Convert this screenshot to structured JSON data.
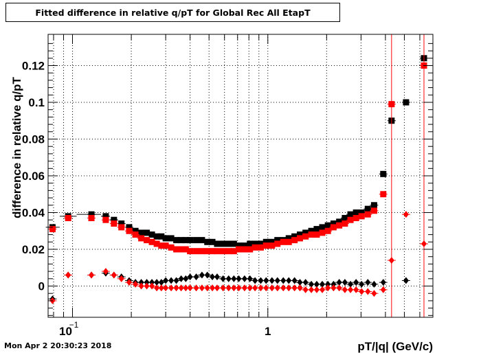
{
  "title": "Fitted difference in relative q/pT  for Global Rec All EtapT",
  "footer": "Mon Apr  2 20:30:23 2018",
  "chart_data": {
    "type": "scatter",
    "title": "Fitted difference in relative q/pT  for Global Rec All EtapT",
    "xlabel": "pT/|q| (GeV/c)",
    "ylabel": "difference in relative q/pT",
    "xscale": "log",
    "xlim": [
      0.075,
      7.0
    ],
    "ylim": [
      -0.017,
      0.137
    ],
    "x_tick_labels": [
      {
        "x": 0.1,
        "text": "10",
        "exp": "−1"
      },
      {
        "x": 1,
        "text": "1",
        "exp": ""
      }
    ],
    "y_ticks": [
      0,
      0.02,
      0.04,
      0.06,
      0.08,
      0.1,
      0.12
    ],
    "y_tick_labels": [
      "0",
      "0.02",
      "0.04",
      "0.06",
      "0.08",
      "0.1",
      "0.12"
    ],
    "grid": true,
    "series": [
      {
        "color": "#000000",
        "marker": "square",
        "points": [
          [
            0.079,
            0.032
          ],
          [
            0.095,
            0.038
          ],
          [
            0.125,
            0.039
          ],
          [
            0.148,
            0.038
          ],
          [
            0.163,
            0.036
          ],
          [
            0.178,
            0.034
          ],
          [
            0.195,
            0.032
          ],
          [
            0.21,
            0.03
          ],
          [
            0.225,
            0.029
          ],
          [
            0.24,
            0.029
          ],
          [
            0.255,
            0.028
          ],
          [
            0.27,
            0.027
          ],
          [
            0.285,
            0.027
          ],
          [
            0.3,
            0.026
          ],
          [
            0.32,
            0.026
          ],
          [
            0.34,
            0.025
          ],
          [
            0.36,
            0.025
          ],
          [
            0.38,
            0.025
          ],
          [
            0.4,
            0.025
          ],
          [
            0.43,
            0.025
          ],
          [
            0.46,
            0.025
          ],
          [
            0.49,
            0.024
          ],
          [
            0.52,
            0.024
          ],
          [
            0.55,
            0.023
          ],
          [
            0.59,
            0.023
          ],
          [
            0.63,
            0.023
          ],
          [
            0.67,
            0.023
          ],
          [
            0.71,
            0.022
          ],
          [
            0.76,
            0.022
          ],
          [
            0.81,
            0.023
          ],
          [
            0.86,
            0.023
          ],
          [
            0.92,
            0.023
          ],
          [
            0.98,
            0.024
          ],
          [
            1.05,
            0.024
          ],
          [
            1.12,
            0.025
          ],
          [
            1.2,
            0.025
          ],
          [
            1.28,
            0.026
          ],
          [
            1.37,
            0.027
          ],
          [
            1.46,
            0.028
          ],
          [
            1.56,
            0.029
          ],
          [
            1.67,
            0.03
          ],
          [
            1.78,
            0.031
          ],
          [
            1.9,
            0.032
          ],
          [
            2.03,
            0.033
          ],
          [
            2.17,
            0.034
          ],
          [
            2.32,
            0.035
          ],
          [
            2.48,
            0.037
          ],
          [
            2.65,
            0.039
          ],
          [
            2.83,
            0.04
          ],
          [
            3.02,
            0.04
          ],
          [
            3.25,
            0.042
          ],
          [
            3.5,
            0.044
          ],
          [
            3.9,
            0.061
          ],
          [
            4.3,
            0.09
          ],
          [
            5.1,
            0.1
          ],
          [
            6.3,
            0.124
          ]
        ],
        "xerr": [
          [
            0.073,
            0.086
          ],
          [
            0.086,
            0.105
          ],
          [
            0.105,
            0.14
          ],
          [
            0.14,
            0.155
          ],
          [
            0.155,
            0.17
          ]
        ]
      },
      {
        "color": "#ff0000",
        "marker": "square",
        "points": [
          [
            0.079,
            0.031
          ],
          [
            0.095,
            0.037
          ],
          [
            0.125,
            0.037
          ],
          [
            0.148,
            0.036
          ],
          [
            0.163,
            0.034
          ],
          [
            0.178,
            0.032
          ],
          [
            0.195,
            0.03
          ],
          [
            0.21,
            0.028
          ],
          [
            0.225,
            0.026
          ],
          [
            0.24,
            0.025
          ],
          [
            0.255,
            0.024
          ],
          [
            0.27,
            0.023
          ],
          [
            0.285,
            0.022
          ],
          [
            0.3,
            0.022
          ],
          [
            0.32,
            0.021
          ],
          [
            0.34,
            0.02
          ],
          [
            0.36,
            0.02
          ],
          [
            0.38,
            0.02
          ],
          [
            0.4,
            0.019
          ],
          [
            0.43,
            0.019
          ],
          [
            0.46,
            0.019
          ],
          [
            0.49,
            0.019
          ],
          [
            0.52,
            0.019
          ],
          [
            0.55,
            0.019
          ],
          [
            0.59,
            0.019
          ],
          [
            0.63,
            0.019
          ],
          [
            0.67,
            0.019
          ],
          [
            0.71,
            0.02
          ],
          [
            0.76,
            0.02
          ],
          [
            0.81,
            0.02
          ],
          [
            0.86,
            0.021
          ],
          [
            0.92,
            0.021
          ],
          [
            0.98,
            0.022
          ],
          [
            1.05,
            0.022
          ],
          [
            1.12,
            0.023
          ],
          [
            1.2,
            0.024
          ],
          [
            1.28,
            0.024
          ],
          [
            1.37,
            0.025
          ],
          [
            1.46,
            0.026
          ],
          [
            1.56,
            0.027
          ],
          [
            1.67,
            0.028
          ],
          [
            1.78,
            0.028
          ],
          [
            1.9,
            0.029
          ],
          [
            2.03,
            0.03
          ],
          [
            2.17,
            0.032
          ],
          [
            2.32,
            0.033
          ],
          [
            2.48,
            0.034
          ],
          [
            2.65,
            0.036
          ],
          [
            2.83,
            0.037
          ],
          [
            3.02,
            0.038
          ],
          [
            3.25,
            0.039
          ],
          [
            3.5,
            0.041
          ],
          [
            3.9,
            0.05
          ],
          [
            4.3,
            0.099
          ],
          [
            6.3,
            0.12
          ]
        ],
        "yerr_full": [
          4.3,
          6.3
        ]
      },
      {
        "color": "#000000",
        "marker": "diamond",
        "points": [
          [
            0.079,
            -0.007
          ],
          [
            0.095,
            0.006
          ],
          [
            0.125,
            0.006
          ],
          [
            0.148,
            0.007
          ],
          [
            0.163,
            0.006
          ],
          [
            0.178,
            0.005
          ],
          [
            0.195,
            0.003
          ],
          [
            0.21,
            0.002
          ],
          [
            0.225,
            0.002
          ],
          [
            0.24,
            0.002
          ],
          [
            0.255,
            0.002
          ],
          [
            0.27,
            0.002
          ],
          [
            0.285,
            0.002
          ],
          [
            0.3,
            0.003
          ],
          [
            0.32,
            0.003
          ],
          [
            0.34,
            0.003
          ],
          [
            0.36,
            0.004
          ],
          [
            0.38,
            0.004
          ],
          [
            0.4,
            0.005
          ],
          [
            0.43,
            0.005
          ],
          [
            0.46,
            0.006
          ],
          [
            0.49,
            0.006
          ],
          [
            0.52,
            0.005
          ],
          [
            0.55,
            0.005
          ],
          [
            0.59,
            0.004
          ],
          [
            0.63,
            0.004
          ],
          [
            0.67,
            0.004
          ],
          [
            0.71,
            0.004
          ],
          [
            0.76,
            0.004
          ],
          [
            0.81,
            0.004
          ],
          [
            0.86,
            0.003
          ],
          [
            0.92,
            0.003
          ],
          [
            0.98,
            0.003
          ],
          [
            1.05,
            0.003
          ],
          [
            1.12,
            0.003
          ],
          [
            1.2,
            0.003
          ],
          [
            1.28,
            0.003
          ],
          [
            1.37,
            0.003
          ],
          [
            1.46,
            0.002
          ],
          [
            1.56,
            0.002
          ],
          [
            1.67,
            0.001
          ],
          [
            1.78,
            0.001
          ],
          [
            1.9,
            0.001
          ],
          [
            2.03,
            0.001
          ],
          [
            2.17,
            0.001
          ],
          [
            2.32,
            0.002
          ],
          [
            2.48,
            0.002
          ],
          [
            2.65,
            0.001
          ],
          [
            2.83,
            0.002
          ],
          [
            3.02,
            0.001
          ],
          [
            3.25,
            0.002
          ],
          [
            3.5,
            0.001
          ],
          [
            3.9,
            0.002
          ],
          [
            5.1,
            0.003
          ]
        ]
      },
      {
        "color": "#ff0000",
        "marker": "diamond",
        "points": [
          [
            0.079,
            -0.008
          ],
          [
            0.095,
            0.006
          ],
          [
            0.125,
            0.006
          ],
          [
            0.148,
            0.008
          ],
          [
            0.163,
            0.006
          ],
          [
            0.178,
            0.004
          ],
          [
            0.195,
            0.002
          ],
          [
            0.21,
            0.001
          ],
          [
            0.225,
            0.0
          ],
          [
            0.24,
            0.0
          ],
          [
            0.255,
            0.0
          ],
          [
            0.27,
            -0.001
          ],
          [
            0.285,
            -0.001
          ],
          [
            0.3,
            -0.001
          ],
          [
            0.32,
            -0.001
          ],
          [
            0.34,
            -0.001
          ],
          [
            0.36,
            -0.001
          ],
          [
            0.38,
            -0.001
          ],
          [
            0.4,
            -0.001
          ],
          [
            0.43,
            -0.001
          ],
          [
            0.46,
            -0.001
          ],
          [
            0.49,
            -0.001
          ],
          [
            0.52,
            -0.001
          ],
          [
            0.55,
            -0.001
          ],
          [
            0.59,
            -0.001
          ],
          [
            0.63,
            -0.001
          ],
          [
            0.67,
            -0.001
          ],
          [
            0.71,
            -0.001
          ],
          [
            0.76,
            -0.001
          ],
          [
            0.81,
            -0.001
          ],
          [
            0.86,
            -0.001
          ],
          [
            0.92,
            -0.001
          ],
          [
            0.98,
            -0.001
          ],
          [
            1.05,
            -0.001
          ],
          [
            1.12,
            -0.001
          ],
          [
            1.2,
            -0.001
          ],
          [
            1.28,
            -0.001
          ],
          [
            1.37,
            -0.001
          ],
          [
            1.46,
            -0.001
          ],
          [
            1.56,
            -0.002
          ],
          [
            1.67,
            -0.002
          ],
          [
            1.78,
            -0.002
          ],
          [
            1.9,
            -0.002
          ],
          [
            2.03,
            -0.001
          ],
          [
            2.17,
            -0.001
          ],
          [
            2.32,
            -0.001
          ],
          [
            2.48,
            -0.002
          ],
          [
            2.65,
            -0.002
          ],
          [
            2.83,
            -0.002
          ],
          [
            3.02,
            -0.003
          ],
          [
            3.25,
            -0.003
          ],
          [
            3.5,
            -0.004
          ],
          [
            3.9,
            -0.002
          ],
          [
            4.3,
            0.014
          ],
          [
            5.1,
            0.039
          ],
          [
            6.3,
            0.023
          ]
        ]
      }
    ]
  }
}
